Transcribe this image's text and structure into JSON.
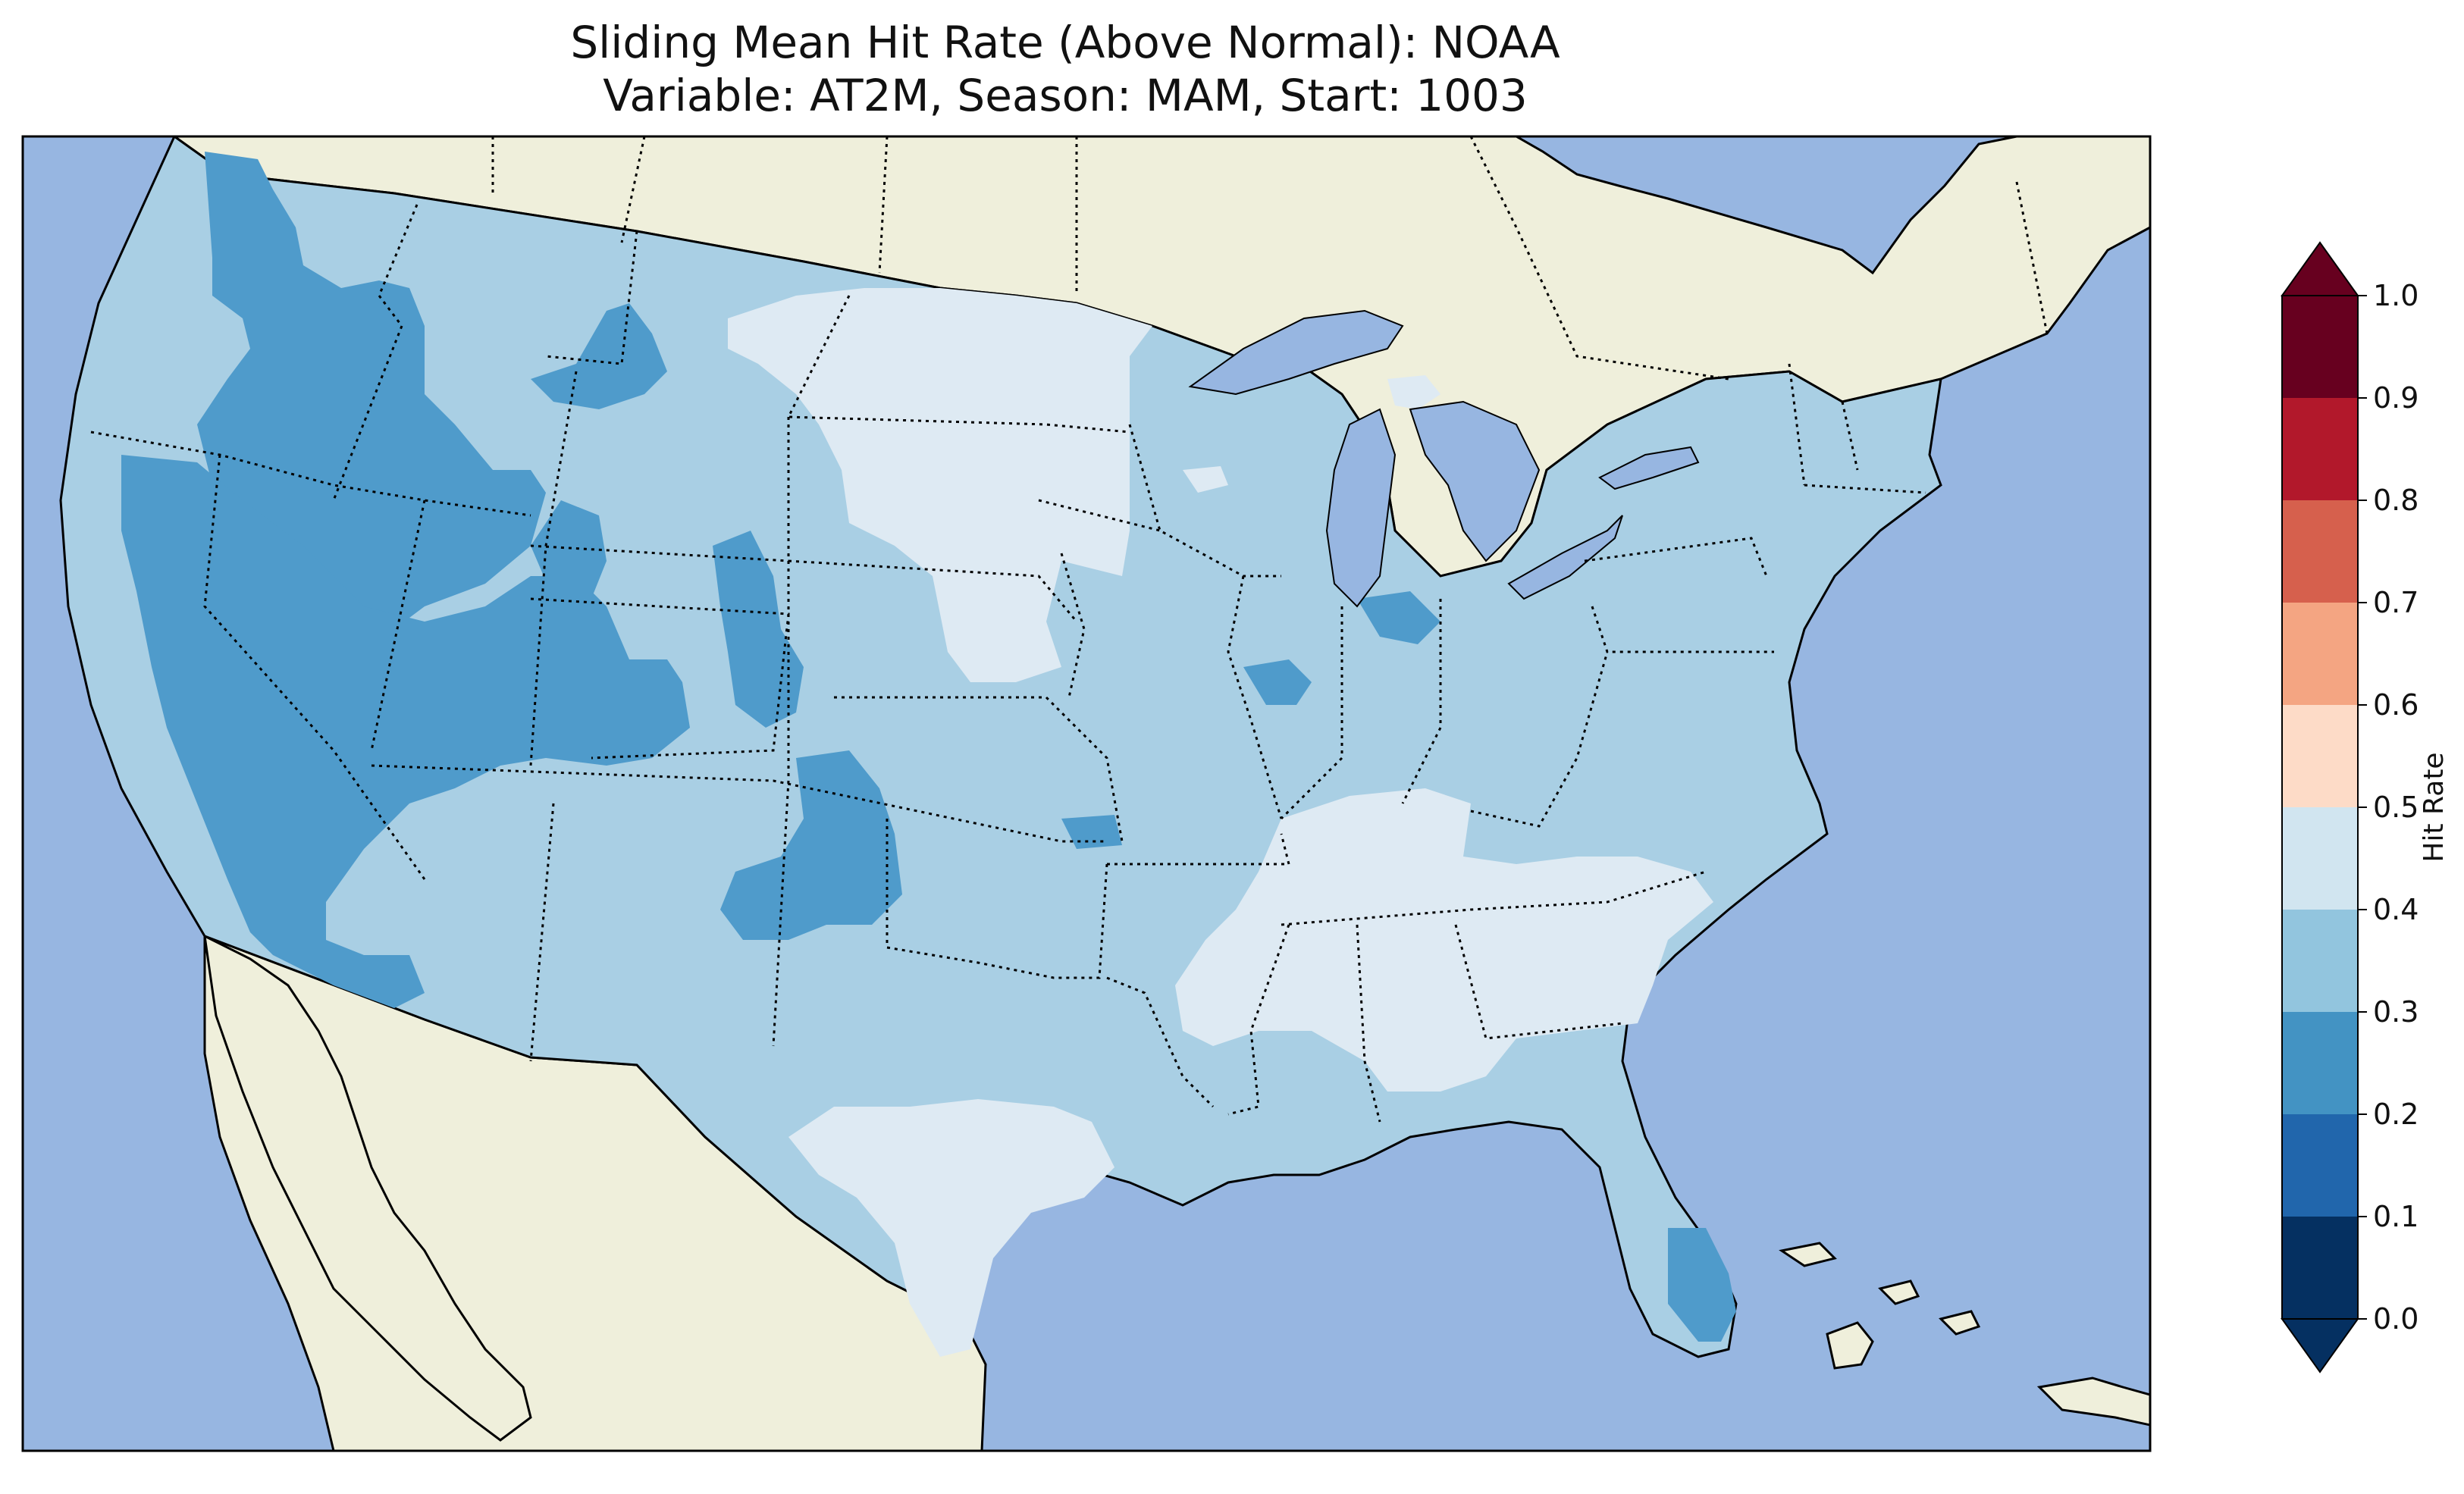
{
  "title": {
    "line1": "Sliding Mean Hit Rate (Above Normal): NOAA",
    "line2": "Variable: AT2M, Season: MAM, Start: 1003"
  },
  "colors": {
    "ocean": "#97b6e1",
    "land": "#efefdb",
    "lake": "#97b6e1"
  },
  "colorbar": {
    "label": "Hit Rate",
    "ticks": [
      "0.0",
      "0.1",
      "0.2",
      "0.3",
      "0.4",
      "0.5",
      "0.6",
      "0.7",
      "0.8",
      "0.9",
      "1.0"
    ],
    "bins": [
      {
        "range": [
          0.0,
          0.1
        ],
        "color": "#053061"
      },
      {
        "range": [
          0.1,
          0.2
        ],
        "color": "#2166ac"
      },
      {
        "range": [
          0.2,
          0.3
        ],
        "color": "#4393c3"
      },
      {
        "range": [
          0.3,
          0.4
        ],
        "color": "#92c5de"
      },
      {
        "range": [
          0.4,
          0.5
        ],
        "color": "#d1e5f0"
      },
      {
        "range": [
          0.5,
          0.6
        ],
        "color": "#fddbc7"
      },
      {
        "range": [
          0.6,
          0.7
        ],
        "color": "#f4a582"
      },
      {
        "range": [
          0.7,
          0.8
        ],
        "color": "#d6604d"
      },
      {
        "range": [
          0.8,
          0.9
        ],
        "color": "#b2182b"
      },
      {
        "range": [
          0.9,
          1.0
        ],
        "color": "#67001f"
      }
    ],
    "extend": "both"
  },
  "map_regions": [
    {
      "name": "us-baseline",
      "class": "0.3-0.4",
      "color": "#a9cfe4"
    },
    {
      "name": "pacific-northwest",
      "class": "0.2-0.3",
      "color": "#4f9bcb"
    },
    {
      "name": "great-basin",
      "class": "0.2-0.3",
      "color": "#4f9bcb"
    },
    {
      "name": "northern-plains",
      "class": "0.4-0.5",
      "color": "#deeaf3"
    },
    {
      "name": "southeast",
      "class": "0.4-0.5",
      "color": "#deeaf3"
    },
    {
      "name": "south-texas",
      "class": "0.4-0.5",
      "color": "#deeaf3"
    },
    {
      "name": "south-florida",
      "class": "0.2-0.3",
      "color": "#4f9bcb"
    }
  ]
}
